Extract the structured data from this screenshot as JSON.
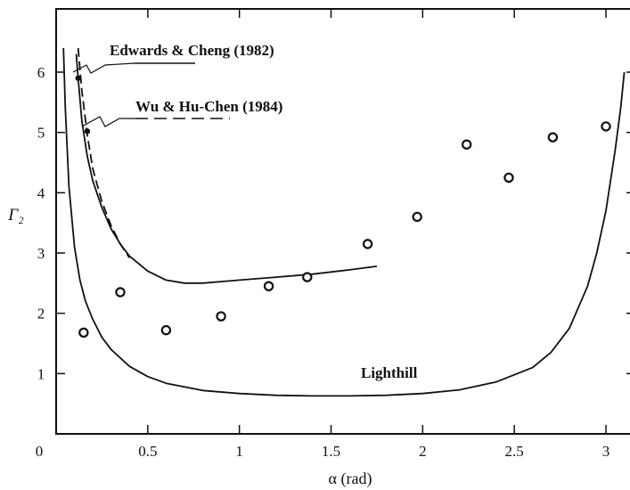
{
  "chart_data": {
    "type": "scatter",
    "xlabel": "α (rad)",
    "ylabel": "Γ₂",
    "xlim": [
      0,
      3.2
    ],
    "ylim": [
      0,
      7
    ],
    "x_ticks": [
      {
        "value": 0,
        "label": "0"
      },
      {
        "value": 0.5,
        "label": "0.5"
      },
      {
        "value": 1,
        "label": "1"
      },
      {
        "value": 1.5,
        "label": "1.5"
      },
      {
        "value": 2,
        "label": "2"
      },
      {
        "value": 2.5,
        "label": "2.5"
      },
      {
        "value": 3,
        "label": "3"
      }
    ],
    "y_ticks": [
      {
        "value": 1,
        "label": "1"
      },
      {
        "value": 2,
        "label": "2"
      },
      {
        "value": 3,
        "label": "3"
      },
      {
        "value": 4,
        "label": "4"
      },
      {
        "value": 5,
        "label": "5"
      },
      {
        "value": 6,
        "label": "6"
      }
    ],
    "series": [
      {
        "kind": "line",
        "style": "solid",
        "x": [
          0.11,
          0.12,
          0.14,
          0.17,
          0.2,
          0.25,
          0.3,
          0.35,
          0.4,
          0.5,
          0.6,
          0.7,
          0.8,
          1.0,
          1.2,
          1.4,
          1.6,
          1.75
        ],
        "y": [
          6.3,
          5.9,
          5.2,
          4.6,
          4.2,
          3.75,
          3.4,
          3.15,
          2.95,
          2.7,
          2.55,
          2.5,
          2.5,
          2.55,
          2.6,
          2.65,
          2.72,
          2.78
        ]
      },
      {
        "kind": "line",
        "style": "dashed",
        "x": [
          0.12,
          0.14,
          0.17,
          0.2,
          0.25,
          0.3,
          0.35,
          0.4
        ],
        "y": [
          6.4,
          5.7,
          4.95,
          4.4,
          3.85,
          3.45,
          3.15,
          2.92
        ]
      },
      {
        "kind": "line",
        "style": "solid",
        "x": [
          0.04,
          0.05,
          0.07,
          0.1,
          0.13,
          0.16,
          0.2,
          0.25,
          0.3,
          0.4,
          0.5,
          0.6,
          0.8,
          1.0,
          1.2,
          1.4,
          1.6,
          1.8,
          2.0,
          2.2,
          2.4,
          2.6,
          2.7,
          2.8,
          2.9,
          2.95,
          3.0,
          3.05,
          3.08,
          3.1
        ],
        "y": [
          6.4,
          5.4,
          4.1,
          3.1,
          2.55,
          2.2,
          1.9,
          1.6,
          1.4,
          1.12,
          0.95,
          0.84,
          0.72,
          0.67,
          0.64,
          0.63,
          0.63,
          0.64,
          0.67,
          0.73,
          0.86,
          1.1,
          1.35,
          1.75,
          2.45,
          3.0,
          3.7,
          4.7,
          5.4,
          6.0
        ]
      },
      {
        "kind": "scatter",
        "marker": "open-circle",
        "x": [
          0.15,
          0.35,
          0.6,
          0.9,
          1.16,
          1.37,
          1.7,
          1.97,
          2.24,
          2.47,
          2.71,
          3.0
        ],
        "y": [
          1.68,
          2.35,
          1.72,
          1.95,
          2.45,
          2.6,
          3.15,
          3.6,
          4.8,
          4.25,
          4.92,
          5.1
        ]
      }
    ],
    "endpoints": [
      {
        "x": 0.12,
        "y": 5.9
      },
      {
        "x": 0.17,
        "y": 5.02
      }
    ],
    "annotations": [
      {
        "text": "Edwards & Cheng (1982)",
        "line_style": "solid",
        "x": 0.12,
        "y": 5.9
      },
      {
        "text": "Wu & Hu-Chen (1984)",
        "line_style": "dashed",
        "x": 0.17,
        "y": 5.02
      },
      {
        "text": "Lighthill",
        "line_style": "none",
        "x": 1.6,
        "y": 1.0
      }
    ]
  }
}
